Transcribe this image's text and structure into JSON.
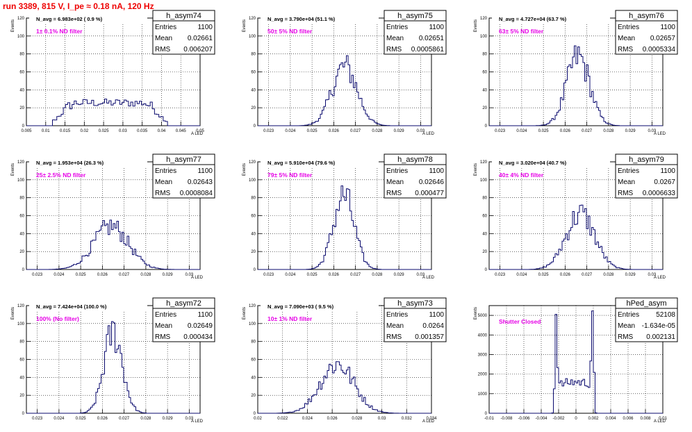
{
  "page_title": "run 3389,   815 V, I_pe ≈ 0.18 nA, 120 Hz",
  "colors": {
    "histogram": "#0a0a6e",
    "filter_label": "#e600e6",
    "title": "#ee0000",
    "grid": "#000000"
  },
  "chart_data": [
    {
      "type": "bar",
      "name": "h_asym74",
      "stats": {
        "entries_label": "Entries",
        "entries": "1100",
        "mean_label": "Mean",
        "mean": "0.02661",
        "rms_label": "RMS",
        "rms": "0.006207"
      },
      "navg_label": "N_avg = 6.983e+02 ( 0.9 %)",
      "filter_label": "1± 0.1% ND filter",
      "ylabel": "Events",
      "xlabel": "A_LED",
      "xlim": [
        0.005,
        0.05
      ],
      "ylim": [
        0,
        120
      ],
      "xticks": [
        "0.005",
        "0.01",
        "0.015",
        "0.02",
        "0.025",
        "0.03",
        "0.035",
        "0.04",
        "0.045",
        "0.05"
      ],
      "yticks": [
        "0",
        "20",
        "40",
        "60",
        "80",
        "100",
        "120"
      ],
      "grid": true,
      "histogram": {
        "mu": 0.0266,
        "sigma": 0.0062,
        "peak": 30,
        "bins": 80,
        "shape": "broad"
      }
    },
    {
      "type": "bar",
      "name": "h_asym75",
      "stats": {
        "entries_label": "Entries",
        "entries": "1100",
        "mean_label": "Mean",
        "mean": "0.02651",
        "rms_label": "RMS",
        "rms": "0.0005861"
      },
      "navg_label": "N_avg = 3.790e+04 (51.1 %)",
      "filter_label": "50± 5% ND filter",
      "ylabel": "Events",
      "xlabel": "A_LED",
      "xlim": [
        0.0225,
        0.0305
      ],
      "ylim": [
        0,
        120
      ],
      "xticks": [
        "0.023",
        "0.024",
        "0.025",
        "0.026",
        "0.027",
        "0.028",
        "0.029",
        "0.03"
      ],
      "yticks": [
        "0",
        "20",
        "40",
        "60",
        "80",
        "100",
        "120"
      ],
      "grid": true,
      "histogram": {
        "mu": 0.0265,
        "sigma": 0.00058,
        "peak": 66,
        "bins": 100
      }
    },
    {
      "type": "bar",
      "name": "h_asym76",
      "stats": {
        "entries_label": "Entries",
        "entries": "1100",
        "mean_label": "Mean",
        "mean": "0.02657",
        "rms_label": "RMS",
        "rms": "0.0005334"
      },
      "navg_label": "N_avg = 4.727e+04 (63.7 %)",
      "filter_label": "63± 5% ND filter",
      "ylabel": "Events",
      "xlabel": "A_LED",
      "xlim": [
        0.0225,
        0.0305
      ],
      "ylim": [
        0,
        120
      ],
      "xticks": [
        "0.023",
        "0.024",
        "0.025",
        "0.026",
        "0.027",
        "0.028",
        "0.029",
        "0.03"
      ],
      "yticks": [
        "0",
        "20",
        "40",
        "60",
        "80",
        "100",
        "120"
      ],
      "grid": true,
      "histogram": {
        "mu": 0.0266,
        "sigma": 0.00053,
        "peak": 77,
        "bins": 100
      }
    },
    {
      "type": "bar",
      "name": "h_asym77",
      "stats": {
        "entries_label": "Entries",
        "entries": "1100",
        "mean_label": "Mean",
        "mean": "0.02643",
        "rms_label": "RMS",
        "rms": "0.0008084"
      },
      "navg_label": "N_avg = 1.953e+04 (26.3 %)",
      "filter_label": "25± 2.5% ND filter",
      "ylabel": "Events",
      "xlabel": "A_LED",
      "xlim": [
        0.0225,
        0.0305
      ],
      "ylim": [
        0,
        120
      ],
      "xticks": [
        "0.023",
        "0.024",
        "0.025",
        "0.026",
        "0.027",
        "0.028",
        "0.029",
        "0.03"
      ],
      "yticks": [
        "0",
        "20",
        "40",
        "60",
        "80",
        "100",
        "120"
      ],
      "grid": true,
      "histogram": {
        "mu": 0.0264,
        "sigma": 0.0008,
        "peak": 48,
        "bins": 100
      }
    },
    {
      "type": "bar",
      "name": "h_asym78",
      "stats": {
        "entries_label": "Entries",
        "entries": "1100",
        "mean_label": "Mean",
        "mean": "0.02646",
        "rms_label": "RMS",
        "rms": "0.000477"
      },
      "navg_label": "N_avg = 5.910e+04 (79.6 %)",
      "filter_label": "79± 5% ND filter",
      "ylabel": "Events",
      "xlabel": "A_LED",
      "xlim": [
        0.0225,
        0.0305
      ],
      "ylim": [
        0,
        120
      ],
      "xticks": [
        "0.023",
        "0.024",
        "0.025",
        "0.026",
        "0.027",
        "0.028",
        "0.029",
        "0.03"
      ],
      "yticks": [
        "0",
        "20",
        "40",
        "60",
        "80",
        "100",
        "120"
      ],
      "grid": true,
      "histogram": {
        "mu": 0.02646,
        "sigma": 0.00048,
        "peak": 82,
        "bins": 100
      }
    },
    {
      "type": "bar",
      "name": "h_asym79",
      "stats": {
        "entries_label": "Entries",
        "entries": "1100",
        "mean_label": "Mean",
        "mean": "0.0267",
        "rms_label": "RMS",
        "rms": "0.0006633"
      },
      "navg_label": "N_avg = 3.020e+04 (40.7 %)",
      "filter_label": "40± 4% ND filter",
      "ylabel": "Events",
      "xlabel": "A_LED",
      "xlim": [
        0.0225,
        0.0305
      ],
      "ylim": [
        0,
        120
      ],
      "xticks": [
        "0.023",
        "0.024",
        "0.025",
        "0.026",
        "0.027",
        "0.028",
        "0.029",
        "0.03"
      ],
      "yticks": [
        "0",
        "20",
        "40",
        "60",
        "80",
        "100",
        "120"
      ],
      "grid": true,
      "histogram": {
        "mu": 0.0267,
        "sigma": 0.00066,
        "peak": 62,
        "bins": 100
      }
    },
    {
      "type": "bar",
      "name": "h_asym72",
      "stats": {
        "entries_label": "Entries",
        "entries": "1100",
        "mean_label": "Mean",
        "mean": "0.02649",
        "rms_label": "RMS",
        "rms": "0.000434"
      },
      "navg_label": "N_avg = 7.424e+04 (100.0 %)",
      "filter_label": "100% (No filter)",
      "ylabel": "Events",
      "xlabel": "A_LED",
      "xlim": [
        0.0225,
        0.0305
      ],
      "ylim": [
        0,
        120
      ],
      "xticks": [
        "0.023",
        "0.024",
        "0.025",
        "0.026",
        "0.027",
        "0.028",
        "0.029",
        "0.03"
      ],
      "yticks": [
        "0",
        "20",
        "40",
        "60",
        "80",
        "100",
        "120"
      ],
      "grid": true,
      "histogram": {
        "mu": 0.0265,
        "sigma": 0.00043,
        "peak": 90,
        "bins": 100
      }
    },
    {
      "type": "bar",
      "name": "h_asym73",
      "stats": {
        "entries_label": "Entries",
        "entries": "1100",
        "mean_label": "Mean",
        "mean": "0.0264",
        "rms_label": "RMS",
        "rms": "0.001357"
      },
      "navg_label": "N_avg = 7.090e+03 ( 9.5 %)",
      "filter_label": "10± 1% ND filter",
      "ylabel": "Events",
      "xlabel": "A_LED",
      "xlim": [
        0.02,
        0.034
      ],
      "ylim": [
        0,
        120
      ],
      "xticks": [
        "0.02",
        "0.022",
        "0.024",
        "0.026",
        "0.028",
        "0.03",
        "0.032",
        "0.034"
      ],
      "yticks": [
        "0",
        "20",
        "40",
        "60",
        "80",
        "100",
        "120"
      ],
      "grid": true,
      "histogram": {
        "mu": 0.0264,
        "sigma": 0.00136,
        "peak": 55,
        "bins": 100
      }
    },
    {
      "type": "bar",
      "name": "hPed_asym",
      "stats": {
        "entries_label": "Entries",
        "entries": "52108",
        "mean_label": "Mean",
        "mean": "-1.634e-05",
        "rms_label": "RMS",
        "rms": "0.002131"
      },
      "navg_label": "",
      "filter_label": "Shutter Closed",
      "ylabel": "Events",
      "xlabel": "A_LED",
      "xlim": [
        -0.01,
        0.01
      ],
      "ylim": [
        0,
        5500
      ],
      "xticks": [
        "-0.01",
        "-0.008",
        "-0.006",
        "-0.004",
        "-0.002",
        "0",
        "0.002",
        "0.004",
        "0.006",
        "0.008",
        "0.01"
      ],
      "yticks": [
        "0",
        "1000",
        "2000",
        "3000",
        "4000",
        "5000"
      ],
      "grid": true,
      "histogram": {
        "shape": "pedestal",
        "bins": 100,
        "peaks": [
          {
            "mu": -0.0023,
            "sigma": 0.00012,
            "peak": 5100
          },
          {
            "mu": 0.0019,
            "sigma": 0.00012,
            "peak": 4900
          }
        ],
        "floor": 800
      }
    }
  ]
}
